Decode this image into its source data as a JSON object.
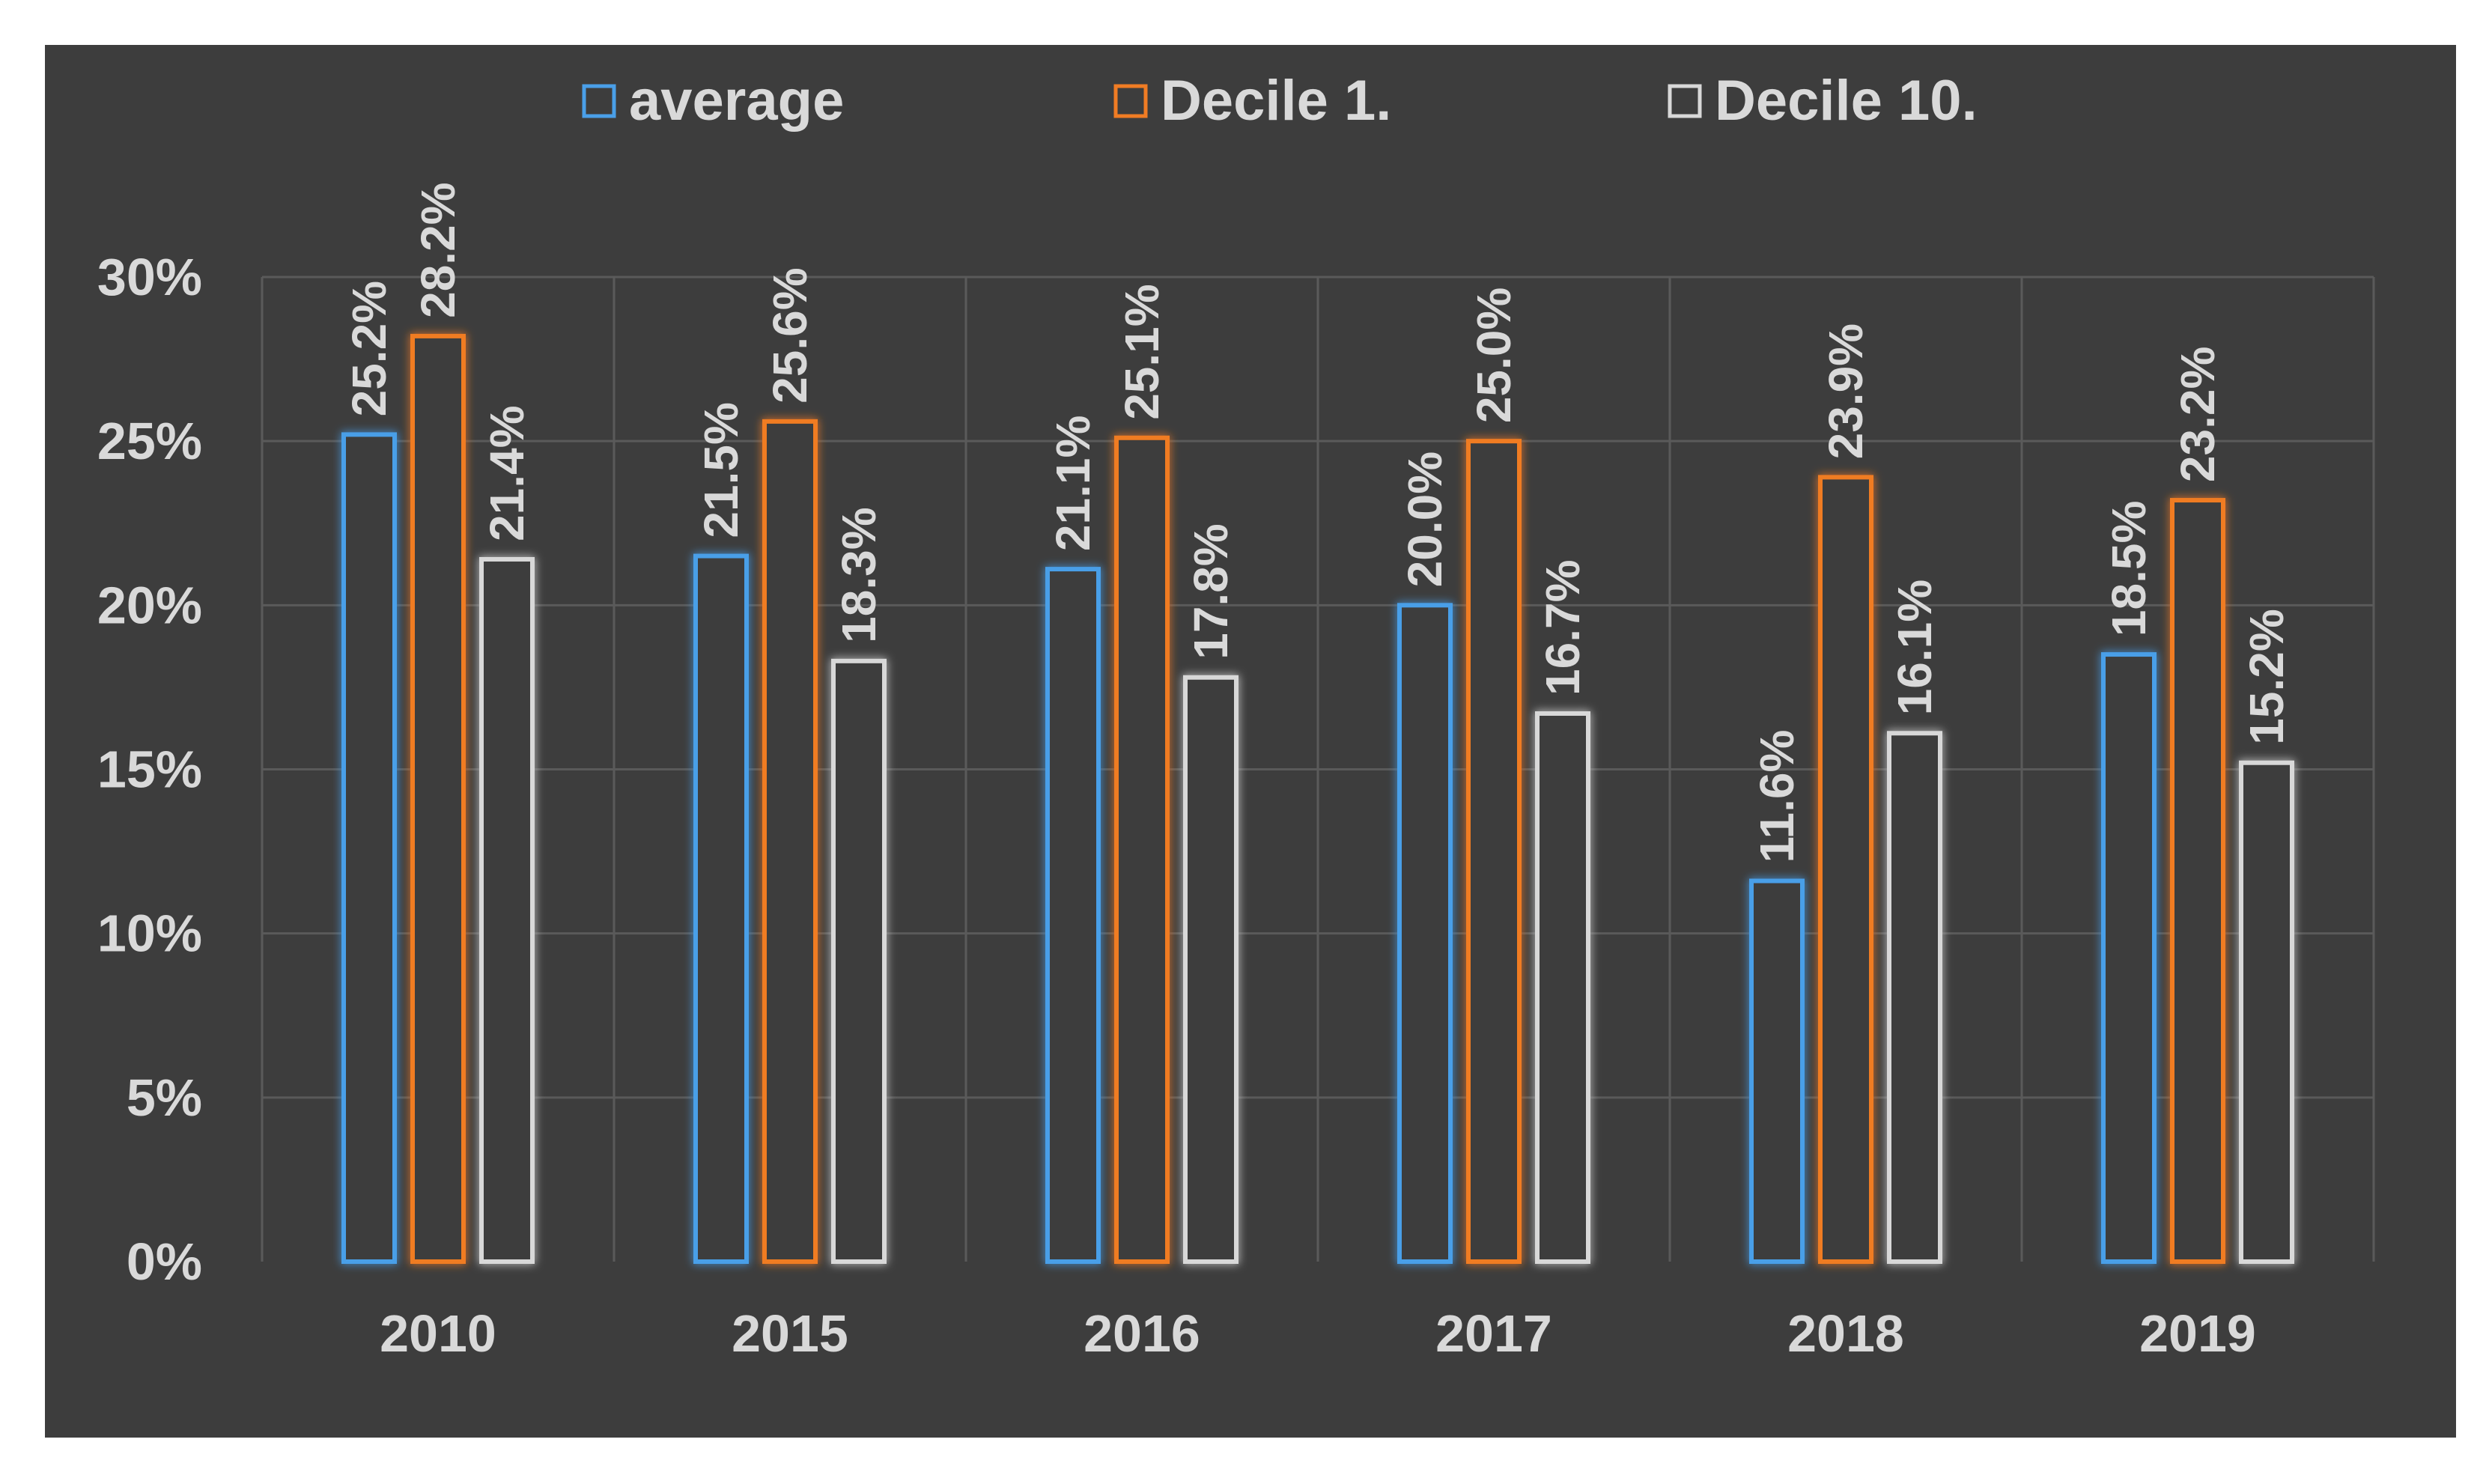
{
  "chart_data": {
    "type": "bar",
    "title": "",
    "xlabel": "",
    "ylabel": "",
    "categories": [
      "2010",
      "2015",
      "2016",
      "2017",
      "2018",
      "2019"
    ],
    "series": [
      {
        "name": "average",
        "color": "#4a9fe8",
        "values": [
          25.2,
          21.5,
          21.1,
          20.0,
          11.6,
          18.5
        ],
        "labels": [
          "25.2%",
          "21.5%",
          "21.1%",
          "20.0%",
          "11.6%",
          "18.5%"
        ]
      },
      {
        "name": "Decile 1.",
        "color": "#f07c24",
        "values": [
          28.2,
          25.6,
          25.1,
          25.0,
          23.9,
          23.2
        ],
        "labels": [
          "28.2%",
          "25.6%",
          "25.1%",
          "25.0%",
          "23.9%",
          "23.2%"
        ]
      },
      {
        "name": "Decile 10.",
        "color": "#d8d8d8",
        "values": [
          21.4,
          18.3,
          17.8,
          16.7,
          16.1,
          15.2
        ],
        "labels": [
          "21.4%",
          "18.3%",
          "17.8%",
          "16.7%",
          "16.1%",
          "15.2%"
        ]
      }
    ],
    "ylim": [
      0,
      30
    ],
    "yticks": [
      0,
      5,
      10,
      15,
      20,
      25,
      30
    ],
    "ytick_labels": [
      "0%",
      "5%",
      "10%",
      "15%",
      "20%",
      "25%",
      "30%"
    ],
    "grid": true,
    "legend_position": "top",
    "colors": {
      "background": "#3d3d3d",
      "grid": "#5a5a5a",
      "text": "#d9d9d9"
    }
  }
}
